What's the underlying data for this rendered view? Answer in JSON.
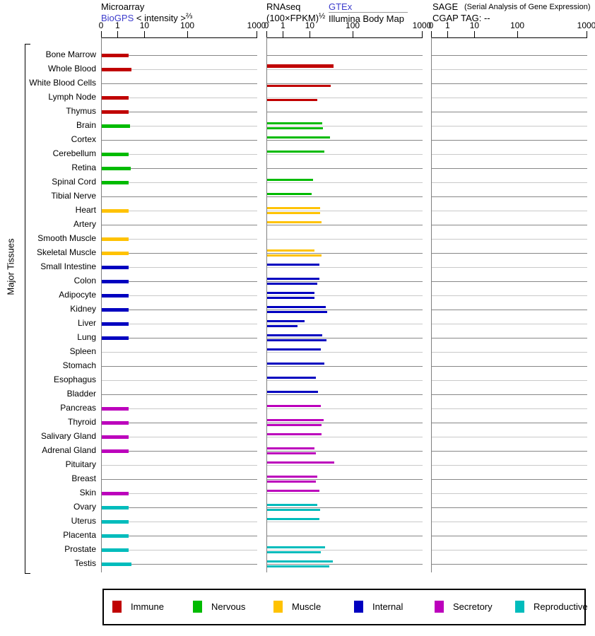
{
  "header": {
    "microarray": {
      "title": "Microarray",
      "source": "BioGPS",
      "transform": "< intensity >",
      "exponent": "⅔"
    },
    "rnaseq": {
      "title": "RNAseq",
      "transform": "(100×FPKM)",
      "exponent": "½",
      "source1": "GTEx",
      "source2": "Illumina Body Map"
    },
    "sage": {
      "title": "SAGE",
      "subtitle": "(Serial Analysis of Gene Expression)",
      "line2": "CGAP TAG: --"
    }
  },
  "side_label": "Major Tissues",
  "legend": [
    {
      "label": "Immune",
      "group": "immune"
    },
    {
      "label": "Nervous",
      "group": "nervous"
    },
    {
      "label": "Muscle",
      "group": "muscle"
    },
    {
      "label": "Internal",
      "group": "internal"
    },
    {
      "label": "Secretory",
      "group": "secretory"
    },
    {
      "label": "Reproductive",
      "group": "reproductive"
    }
  ],
  "chart_data": {
    "type": "bar",
    "orientation": "horizontal",
    "panels": [
      {
        "id": "microarray",
        "label": "Microarray BioGPS"
      },
      {
        "id": "rnaseq",
        "label": "RNAseq GTEx / Illumina Body Map"
      },
      {
        "id": "sage",
        "label": "SAGE CGAP TAG: --"
      }
    ],
    "axis": {
      "tick_labels": [
        "0",
        "1",
        "10",
        "100",
        "1000"
      ],
      "tick_pct": [
        0,
        10.6,
        27.9,
        55.5,
        100
      ],
      "range": [
        0,
        1000
      ],
      "scale": "compressed-log"
    },
    "group_colors": {
      "immune": "#C00000",
      "nervous": "#00BB00",
      "muscle": "#FFC200",
      "internal": "#0000C0",
      "secretory": "#BC00BC",
      "reproductive": "#00BCBC"
    },
    "gridline_dark": "#878787",
    "gridline_light": "#C9C9C9",
    "rows": [
      {
        "t": "Bone Marrow",
        "g": "immune",
        "ma": 2.4,
        "ma_pct": 17.3,
        "gtex": null,
        "gtex_pct": null,
        "il": null,
        "il_pct": null
      },
      {
        "t": "Whole Blood",
        "g": "immune",
        "ma": 3.1,
        "ma_pct": 19.0,
        "gtex": 34,
        "gtex_pct": 42.5,
        "il": null,
        "il_pct": null,
        "thick": true
      },
      {
        "t": "White Blood Cells",
        "g": "immune",
        "ma": null,
        "ma_pct": null,
        "gtex": null,
        "gtex_pct": null,
        "il": 29,
        "il_pct": 40.8
      },
      {
        "t": "Lymph Node",
        "g": "immune",
        "ma": 2.4,
        "ma_pct": 17.3,
        "gtex": null,
        "gtex_pct": null,
        "il": 14.5,
        "il_pct": 32.4
      },
      {
        "t": "Thymus",
        "g": "immune",
        "ma": 2.4,
        "ma_pct": 17.3,
        "gtex": null,
        "gtex_pct": null,
        "il": null,
        "il_pct": null
      },
      {
        "t": "Brain",
        "g": "nervous",
        "ma": 2.7,
        "ma_pct": 18.0,
        "gtex": 18.5,
        "gtex_pct": 35.5,
        "il": 19,
        "il_pct": 35.9
      },
      {
        "t": "Cortex",
        "g": "nervous",
        "ma": null,
        "ma_pct": null,
        "gtex": 28.5,
        "gtex_pct": 40.3,
        "il": null,
        "il_pct": null
      },
      {
        "t": "Cerebellum",
        "g": "nervous",
        "ma": 2.4,
        "ma_pct": 17.3,
        "gtex": 20.5,
        "gtex_pct": 36.7,
        "il": null,
        "il_pct": null
      },
      {
        "t": "Retina",
        "g": "nervous",
        "ma": 2.9,
        "ma_pct": 18.6,
        "gtex": null,
        "gtex_pct": null,
        "il": null,
        "il_pct": null
      },
      {
        "t": "Spinal Cord",
        "g": "nervous",
        "ma": 2.4,
        "ma_pct": 17.3,
        "gtex": 11,
        "gtex_pct": 29.7,
        "il": null,
        "il_pct": null
      },
      {
        "t": "Tibial Nerve",
        "g": "nervous",
        "ma": null,
        "ma_pct": null,
        "gtex": 10.5,
        "gtex_pct": 28.6,
        "il": null,
        "il_pct": null
      },
      {
        "t": "Heart",
        "g": "muscle",
        "ma": 2.4,
        "ma_pct": 17.3,
        "gtex": 17,
        "gtex_pct": 34.2,
        "il": 17,
        "il_pct": 34.1
      },
      {
        "t": "Artery",
        "g": "muscle",
        "ma": null,
        "ma_pct": null,
        "gtex": 18,
        "gtex_pct": 35.0,
        "il": null,
        "il_pct": null
      },
      {
        "t": "Smooth Muscle",
        "g": "muscle",
        "ma": 2.4,
        "ma_pct": 17.3,
        "gtex": null,
        "gtex_pct": null,
        "il": null,
        "il_pct": null
      },
      {
        "t": "Skeletal Muscle",
        "g": "muscle",
        "ma": 2.4,
        "ma_pct": 17.3,
        "gtex": 12,
        "gtex_pct": 30.5,
        "il": 18,
        "il_pct": 35.0
      },
      {
        "t": "Small Intestine",
        "g": "internal",
        "ma": 2.4,
        "ma_pct": 17.3,
        "gtex": 16,
        "gtex_pct": 33.6,
        "il": null,
        "il_pct": null
      },
      {
        "t": "Colon",
        "g": "internal",
        "ma": 2.4,
        "ma_pct": 17.3,
        "gtex": 16,
        "gtex_pct": 33.6,
        "il": 14.5,
        "il_pct": 32.3
      },
      {
        "t": "Adipocyte",
        "g": "internal",
        "ma": 2.4,
        "ma_pct": 17.3,
        "gtex": 12,
        "gtex_pct": 30.5,
        "il": 12,
        "il_pct": 30.5
      },
      {
        "t": "Kidney",
        "g": "internal",
        "ma": 2.4,
        "ma_pct": 17.3,
        "gtex": 24,
        "gtex_pct": 37.7,
        "il": 26,
        "il_pct": 38.8
      },
      {
        "t": "Liver",
        "g": "internal",
        "ma": 2.4,
        "ma_pct": 17.3,
        "gtex": 6.3,
        "gtex_pct": 24.1,
        "il": 4.4,
        "il_pct": 19.5
      },
      {
        "t": "Lung",
        "g": "internal",
        "ma": 2.4,
        "ma_pct": 17.3,
        "gtex": 18.5,
        "gtex_pct": 35.5,
        "il": 25,
        "il_pct": 38.2
      },
      {
        "t": "Spleen",
        "g": "internal",
        "ma": null,
        "ma_pct": null,
        "gtex": 17.5,
        "gtex_pct": 34.5,
        "il": null,
        "il_pct": null
      },
      {
        "t": "Stomach",
        "g": "internal",
        "ma": null,
        "ma_pct": null,
        "gtex": 20,
        "gtex_pct": 37.0,
        "il": null,
        "il_pct": null
      },
      {
        "t": "Esophagus",
        "g": "internal",
        "ma": null,
        "ma_pct": null,
        "gtex": 13,
        "gtex_pct": 31.4,
        "il": null,
        "il_pct": null
      },
      {
        "t": "Bladder",
        "g": "internal",
        "ma": null,
        "ma_pct": null,
        "gtex": 14.7,
        "gtex_pct": 32.7,
        "il": null,
        "il_pct": null
      },
      {
        "t": "Pancreas",
        "g": "secretory",
        "ma": 2.4,
        "ma_pct": 17.3,
        "gtex": 17.5,
        "gtex_pct": 34.5,
        "il": null,
        "il_pct": null
      },
      {
        "t": "Thyroid",
        "g": "secretory",
        "ma": 2.4,
        "ma_pct": 17.3,
        "gtex": 19.5,
        "gtex_pct": 36.2,
        "il": 18,
        "il_pct": 35.1
      },
      {
        "t": "Salivary Gland",
        "g": "secretory",
        "ma": 2.4,
        "ma_pct": 17.3,
        "gtex": 17.7,
        "gtex_pct": 34.9,
        "il": null,
        "il_pct": null
      },
      {
        "t": "Adrenal Gland",
        "g": "secretory",
        "ma": 2.4,
        "ma_pct": 17.3,
        "gtex": 12,
        "gtex_pct": 30.5,
        "il": 13,
        "il_pct": 31.4
      },
      {
        "t": "Pituitary",
        "g": "secretory",
        "ma": null,
        "ma_pct": null,
        "gtex": 35,
        "gtex_pct": 43.3,
        "il": null,
        "il_pct": null
      },
      {
        "t": "Breast",
        "g": "secretory",
        "ma": null,
        "ma_pct": null,
        "gtex": 13.7,
        "gtex_pct": 32.1,
        "il": 13,
        "il_pct": 31.2
      },
      {
        "t": "Skin",
        "g": "secretory",
        "ma": 2.4,
        "ma_pct": 17.3,
        "gtex": 16,
        "gtex_pct": 33.6,
        "il": null,
        "il_pct": null
      },
      {
        "t": "Ovary",
        "g": "reproductive",
        "ma": 2.4,
        "ma_pct": 17.3,
        "gtex": 13.7,
        "gtex_pct": 32.1,
        "il": 17,
        "il_pct": 34.2
      },
      {
        "t": "Uterus",
        "g": "reproductive",
        "ma": 2.4,
        "ma_pct": 17.3,
        "gtex": 16,
        "gtex_pct": 33.6,
        "il": null,
        "il_pct": null
      },
      {
        "t": "Placenta",
        "g": "reproductive",
        "ma": 2.4,
        "ma_pct": 17.3,
        "gtex": null,
        "gtex_pct": null,
        "il": null,
        "il_pct": null
      },
      {
        "t": "Prostate",
        "g": "reproductive",
        "ma": 2.4,
        "ma_pct": 17.3,
        "gtex": 22,
        "gtex_pct": 37.3,
        "il": 17.5,
        "il_pct": 34.7
      },
      {
        "t": "Testis",
        "g": "reproductive",
        "ma": 3.2,
        "ma_pct": 19.3,
        "gtex": 33,
        "gtex_pct": 42.4,
        "il": 28,
        "il_pct": 39.8
      }
    ]
  }
}
